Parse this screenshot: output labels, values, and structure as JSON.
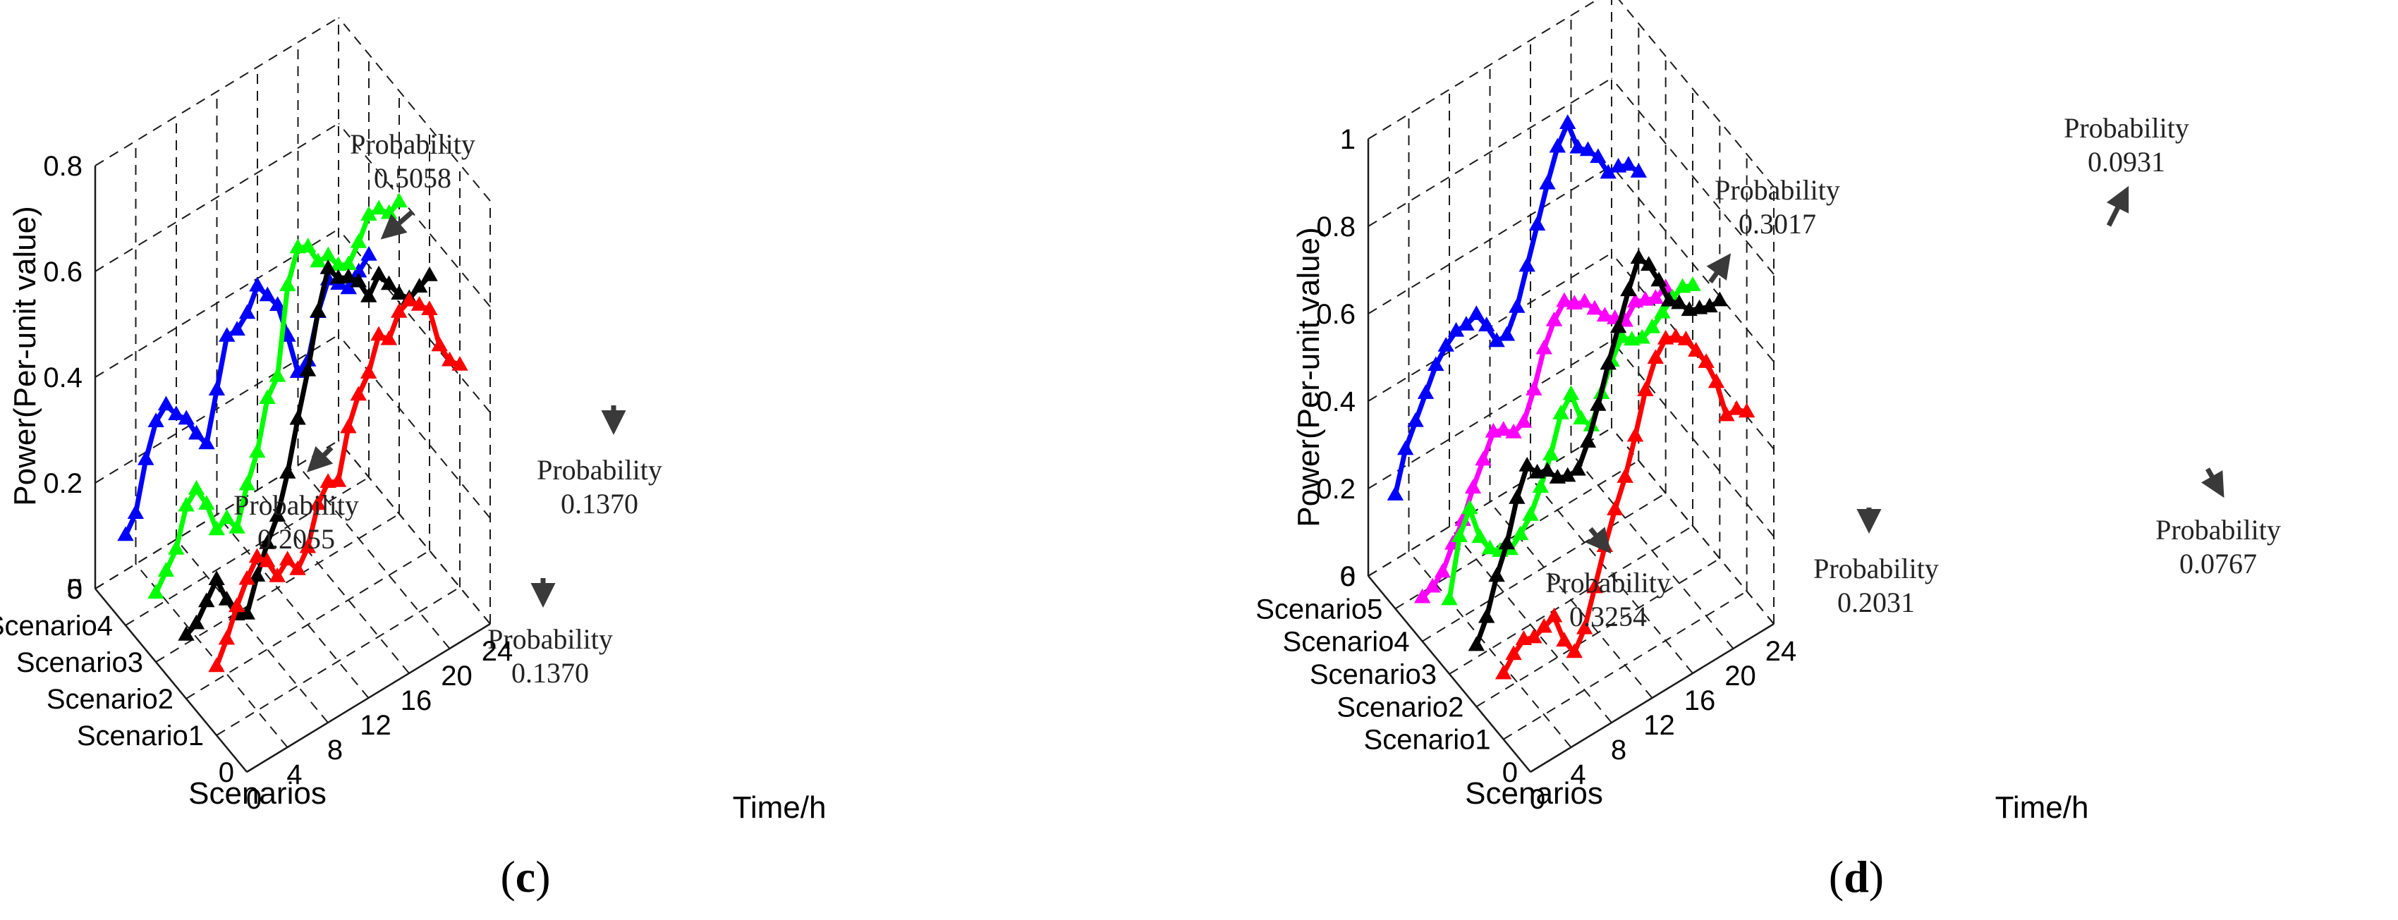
{
  "chart_data": [
    {
      "type": "line",
      "panel": "c",
      "caption_letter": "c",
      "xlabel": "Time/h",
      "ylabel": "Power(Per-unit value)",
      "zlabel": "Scenarios",
      "xlim": [
        0,
        24
      ],
      "ylim": [
        0,
        5
      ],
      "zlim": [
        0,
        0.8
      ],
      "x_ticks": [
        0,
        4,
        8,
        12,
        16,
        20,
        24
      ],
      "z_ticks": [
        0,
        0.2,
        0.4,
        0.6,
        0.8
      ],
      "z_tick_labels": [
        "0",
        "0.2",
        "0.4",
        "0.6",
        "0.8"
      ],
      "y_tick_labels": [
        "0",
        "Scenario1",
        "Scenario2",
        "Scenario3",
        "Scenario4",
        "5"
      ],
      "grid": true,
      "series": [
        {
          "name": "Scenario1",
          "scenario": 1,
          "color": "#ff0000",
          "values": [
            0.13,
            0.17,
            0.22,
            0.26,
            0.29,
            0.27,
            0.23,
            0.25,
            0.22,
            0.25,
            0.32,
            0.35,
            0.34,
            0.43,
            0.48,
            0.51,
            0.57,
            0.55,
            0.59,
            0.6,
            0.58,
            0.56,
            0.48,
            0.44,
            0.42
          ]
        },
        {
          "name": "Scenario2",
          "scenario": 2,
          "color": "#000000",
          "values": [
            0.12,
            0.13,
            0.16,
            0.19,
            0.14,
            0.1,
            0.09,
            0.15,
            0.2,
            0.24,
            0.31,
            0.4,
            0.48,
            0.58,
            0.65,
            0.62,
            0.61,
            0.59,
            0.55,
            0.58,
            0.55,
            0.52,
            0.5,
            0.51,
            0.52
          ]
        },
        {
          "name": "Scenario3",
          "scenario": 3,
          "color": "#00ff00",
          "values": [
            0.13,
            0.16,
            0.19,
            0.26,
            0.28,
            0.24,
            0.18,
            0.19,
            0.16,
            0.23,
            0.28,
            0.37,
            0.4,
            0.56,
            0.62,
            0.61,
            0.57,
            0.57,
            0.54,
            0.53,
            0.56,
            0.6,
            0.6,
            0.58,
            0.59
          ]
        },
        {
          "name": "Scenario4",
          "scenario": 4,
          "color": "#0000ff",
          "values": [
            0.17,
            0.2,
            0.29,
            0.35,
            0.37,
            0.34,
            0.32,
            0.28,
            0.25,
            0.34,
            0.43,
            0.43,
            0.45,
            0.49,
            0.46,
            0.43,
            0.36,
            0.28,
            0.29,
            0.37,
            0.42,
            0.4,
            0.38,
            0.4,
            0.42
          ]
        }
      ],
      "annotations": [
        {
          "line1": "Probability",
          "line2": "0.5058",
          "scenario": 4
        },
        {
          "line1": "Probability",
          "line2": "0.2055",
          "scenario": 3
        },
        {
          "line1": "Probability",
          "line2": "0.1370",
          "scenario": 2
        },
        {
          "line1": "Probability",
          "line2": "0.1370",
          "scenario": 1
        }
      ]
    },
    {
      "type": "line",
      "panel": "d",
      "caption_letter": "d",
      "xlabel": "Time/h",
      "ylabel": "Power(Per-unit value)",
      "zlabel": "Scenarios",
      "xlim": [
        0,
        24
      ],
      "ylim": [
        0,
        6
      ],
      "zlim": [
        0,
        1
      ],
      "x_ticks": [
        0,
        4,
        8,
        12,
        16,
        20,
        24
      ],
      "z_ticks": [
        0,
        0.2,
        0.4,
        0.6,
        0.8,
        1
      ],
      "z_tick_labels": [
        "0",
        "0.2",
        "0.4",
        "0.6",
        "0.8",
        "1"
      ],
      "y_tick_labels": [
        "0",
        "Scenario1",
        "Scenario2",
        "Scenario3",
        "Scenario4",
        "Scenario5",
        "6"
      ],
      "grid": true,
      "series": [
        {
          "name": "Scenario1",
          "scenario": 1,
          "color": "#ff0000",
          "values": [
            0.15,
            0.18,
            0.2,
            0.19,
            0.2,
            0.21,
            0.14,
            0.1,
            0.14,
            0.22,
            0.3,
            0.37,
            0.43,
            0.51,
            0.6,
            0.66,
            0.69,
            0.68,
            0.66,
            0.62,
            0.58,
            0.52,
            0.43,
            0.43,
            0.41
          ]
        },
        {
          "name": "Scenario2",
          "scenario": 2,
          "color": "#000000",
          "values": [
            0.14,
            0.19,
            0.27,
            0.33,
            0.42,
            0.48,
            0.45,
            0.44,
            0.41,
            0.4,
            0.4,
            0.45,
            0.52,
            0.6,
            0.67,
            0.74,
            0.8,
            0.77,
            0.72,
            0.66,
            0.64,
            0.61,
            0.6,
            0.59,
            0.59
          ]
        },
        {
          "name": "Scenario3",
          "scenario": 3,
          "color": "#00ff00",
          "values": [
            0.17,
            0.3,
            0.35,
            0.27,
            0.23,
            0.21,
            0.2,
            0.22,
            0.25,
            0.3,
            0.36,
            0.44,
            0.47,
            0.4,
            0.37,
            0.43,
            0.49,
            0.53,
            0.51,
            0.5,
            0.51,
            0.53,
            0.55,
            0.56,
            0.55
          ]
        },
        {
          "name": "Scenario4",
          "scenario": 4,
          "color": "#ff00ff",
          "values": [
            0.1,
            0.11,
            0.13,
            0.18,
            0.22,
            0.28,
            0.33,
            0.38,
            0.37,
            0.35,
            0.36,
            0.42,
            0.5,
            0.55,
            0.58,
            0.56,
            0.55,
            0.52,
            0.49,
            0.47,
            0.45,
            0.48,
            0.47,
            0.46,
            0.47
          ]
        },
        {
          "name": "Scenario5",
          "scenario": 5,
          "color": "#0000ff",
          "values": [
            0.26,
            0.35,
            0.4,
            0.45,
            0.5,
            0.53,
            0.55,
            0.55,
            0.56,
            0.52,
            0.47,
            0.47,
            0.52,
            0.6,
            0.68,
            0.76,
            0.83,
            0.87,
            0.8,
            0.78,
            0.75,
            0.7,
            0.7,
            0.69,
            0.66
          ]
        }
      ],
      "annotations": [
        {
          "line1": "Probability",
          "line2": "0.3017",
          "scenario": 5
        },
        {
          "line1": "Probability",
          "line2": "0.0931",
          "scenario": 2
        },
        {
          "line1": "Probability",
          "line2": "0.3254",
          "scenario": 4
        },
        {
          "line1": "Probability",
          "line2": "0.2031",
          "scenario": 3
        },
        {
          "line1": "Probability",
          "line2": "0.0767",
          "scenario": 1
        }
      ]
    }
  ]
}
